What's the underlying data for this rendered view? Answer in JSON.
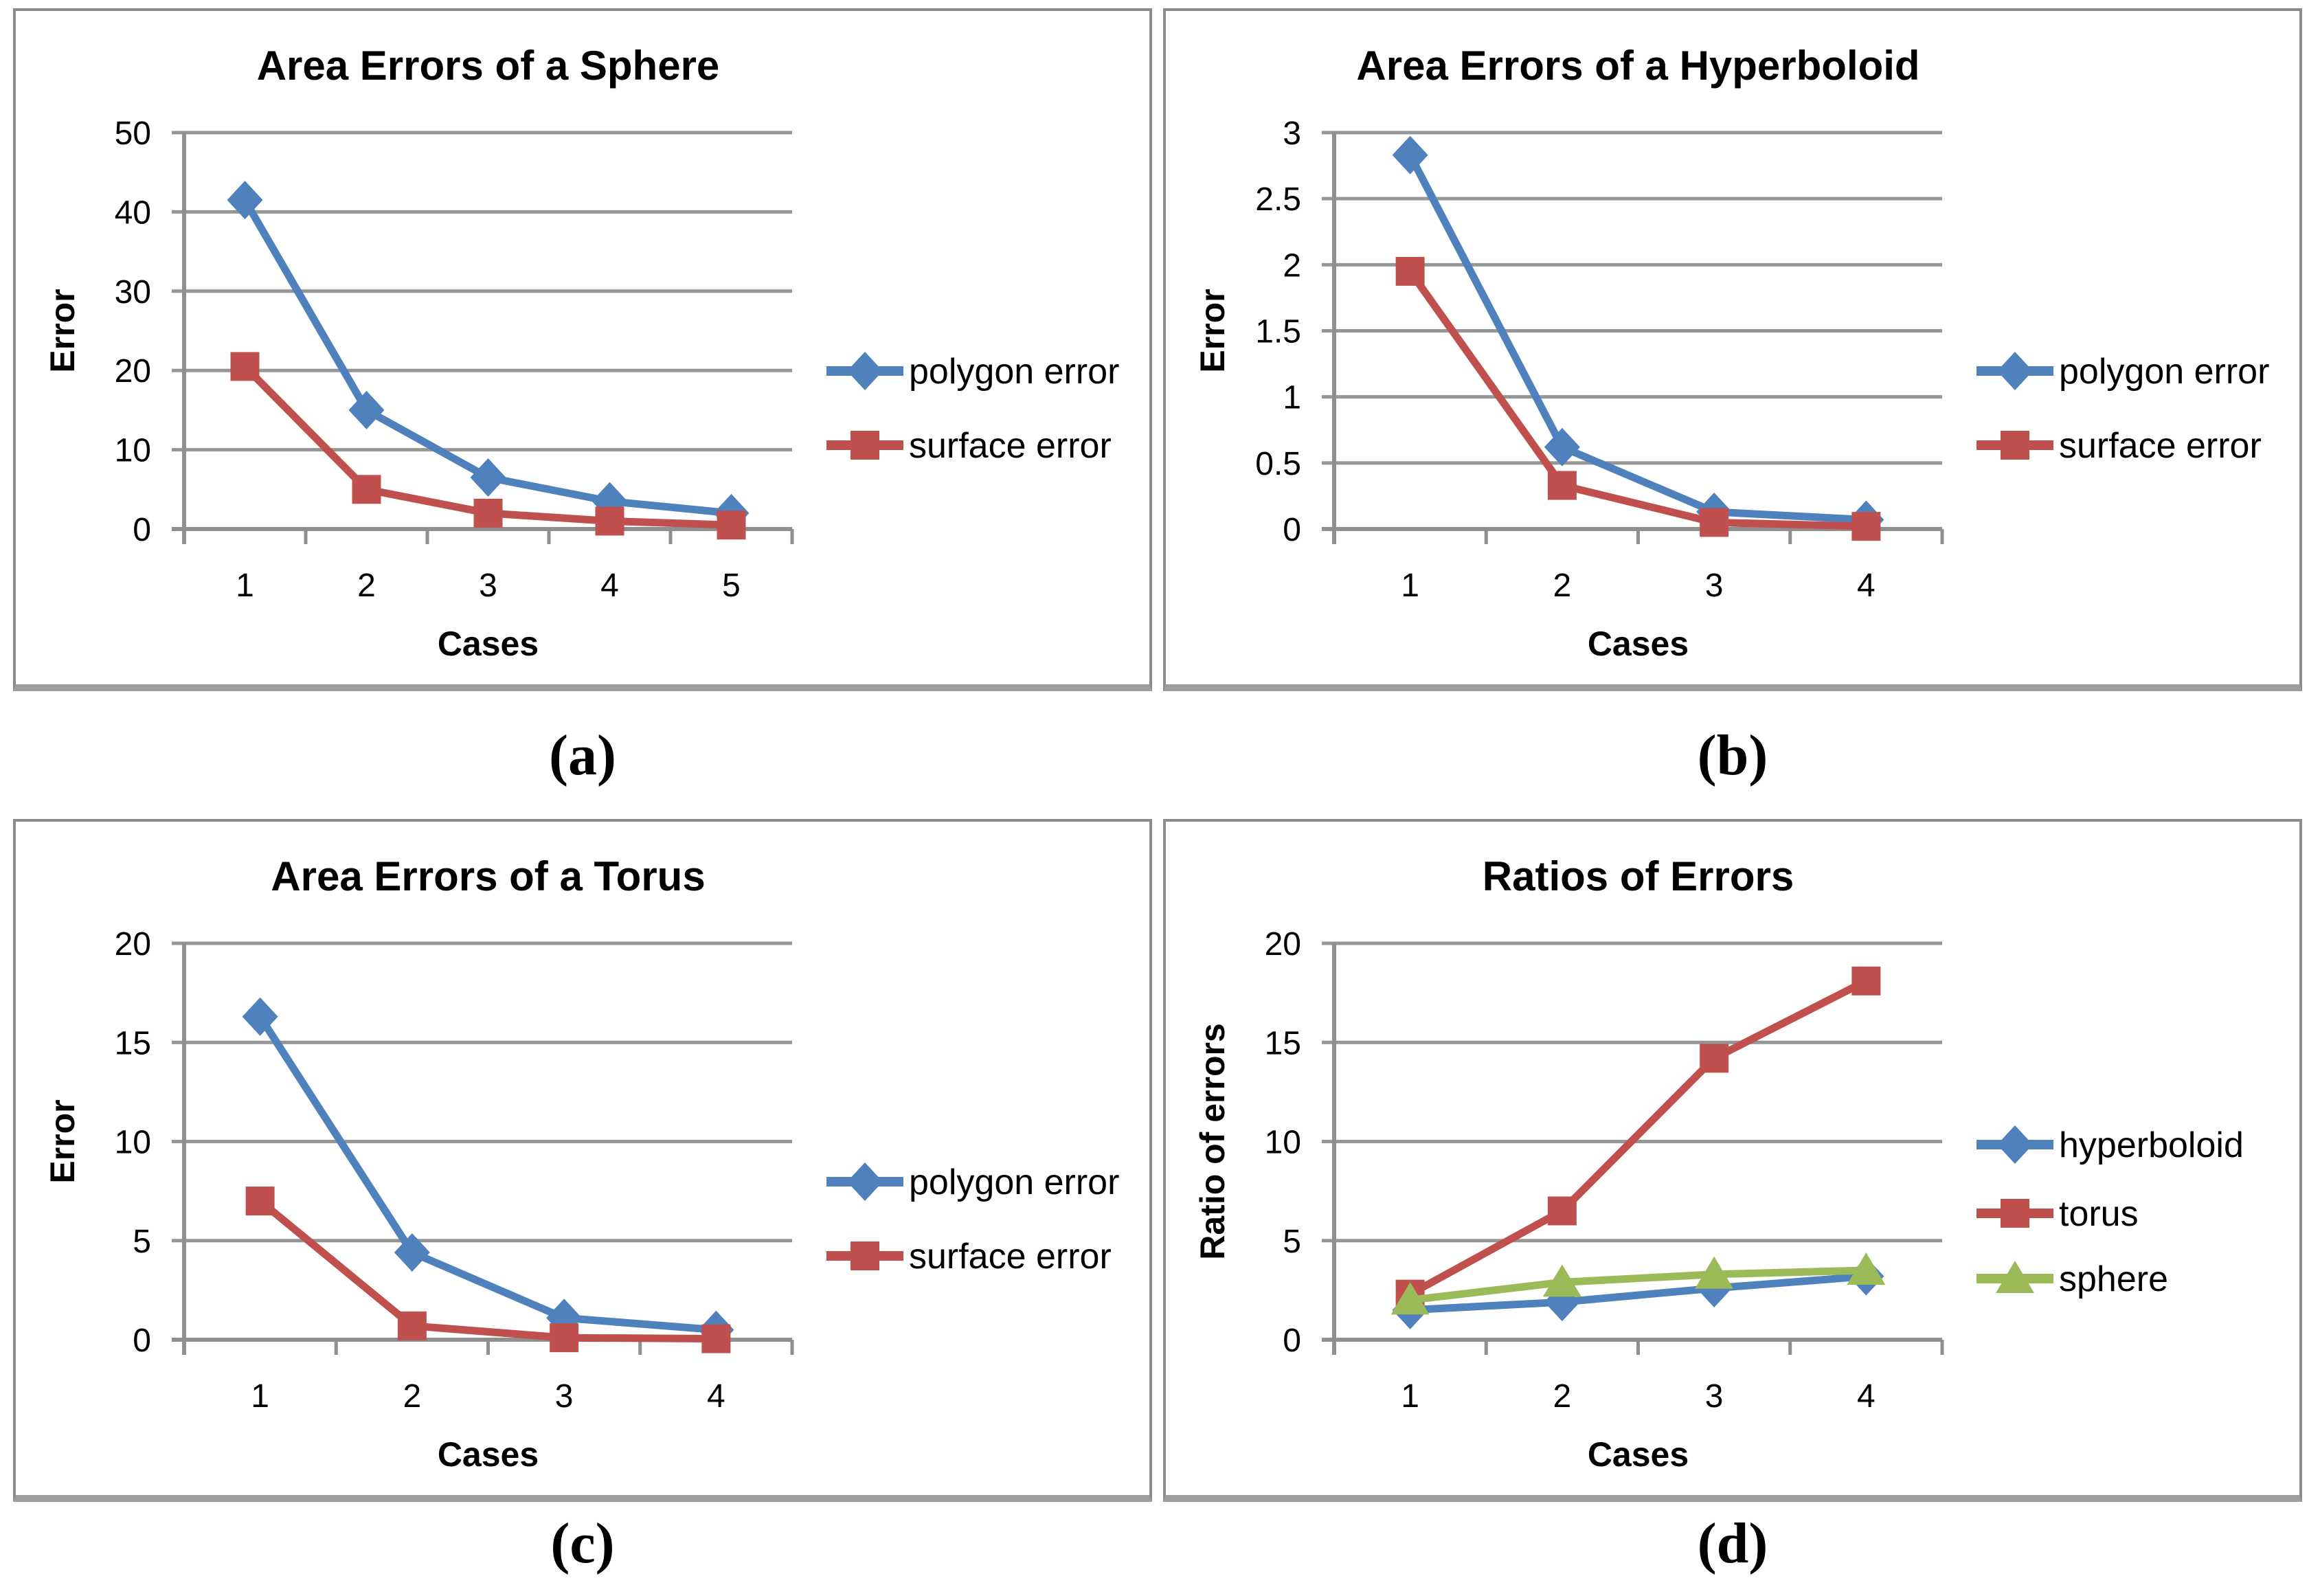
{
  "captions": [
    "(a)",
    "(b)",
    "(c)",
    "(d)"
  ],
  "style_colors": {
    "gridline": "#969696",
    "axis": "#8f8f8f",
    "panel_border": "#8b8b8b",
    "text": "#000000",
    "series_blue": "#4F81BD",
    "series_red": "#C0504D",
    "series_green": "#9BBB59"
  },
  "chart_data": [
    {
      "type": "line",
      "title": "Area Errors of a Sphere",
      "xlabel": "Cases",
      "ylabel": "Error",
      "categories": [
        "1",
        "2",
        "3",
        "4",
        "5"
      ],
      "ylim": [
        0,
        50
      ],
      "ytick_step": 10,
      "grid": true,
      "legend_position": "right",
      "series": [
        {
          "name": "polygon error",
          "color": "#4F81BD",
          "marker": "diamond",
          "values": [
            41.5,
            15,
            6.5,
            3.5,
            2
          ]
        },
        {
          "name": "surface error",
          "color": "#C0504D",
          "marker": "square",
          "values": [
            20.5,
            5,
            2,
            1,
            0.5
          ]
        }
      ]
    },
    {
      "type": "line",
      "title": "Area Errors of a Hyperboloid",
      "xlabel": "Cases",
      "ylabel": "Error",
      "categories": [
        "1",
        "2",
        "3",
        "4"
      ],
      "ylim": [
        0,
        3
      ],
      "ytick_step": 0.5,
      "grid": true,
      "legend_position": "right",
      "series": [
        {
          "name": "polygon error",
          "color": "#4F81BD",
          "marker": "diamond",
          "values": [
            2.83,
            0.62,
            0.13,
            0.07
          ]
        },
        {
          "name": "surface error",
          "color": "#C0504D",
          "marker": "square",
          "values": [
            1.95,
            0.33,
            0.05,
            0.02
          ]
        }
      ]
    },
    {
      "type": "line",
      "title": "Area Errors of a Torus",
      "xlabel": "Cases",
      "ylabel": "Error",
      "categories": [
        "1",
        "2",
        "3",
        "4"
      ],
      "ylim": [
        0,
        20
      ],
      "ytick_step": 5,
      "grid": true,
      "legend_position": "right",
      "series": [
        {
          "name": "polygon error",
          "color": "#4F81BD",
          "marker": "diamond",
          "values": [
            16.3,
            4.4,
            1.1,
            0.5
          ]
        },
        {
          "name": "surface error",
          "color": "#C0504D",
          "marker": "square",
          "values": [
            7.0,
            0.7,
            0.1,
            0.05
          ]
        }
      ]
    },
    {
      "type": "line",
      "title": "Ratios of Errors",
      "xlabel": "Cases",
      "ylabel": "Ratio of errors",
      "categories": [
        "1",
        "2",
        "3",
        "4"
      ],
      "ylim": [
        0,
        20
      ],
      "ytick_step": 5,
      "grid": true,
      "legend_position": "right",
      "series": [
        {
          "name": "hyperboloid",
          "color": "#4F81BD",
          "marker": "diamond",
          "values": [
            1.5,
            1.9,
            2.6,
            3.2
          ]
        },
        {
          "name": "torus",
          "color": "#C0504D",
          "marker": "square",
          "values": [
            2.3,
            6.5,
            14.2,
            18.1
          ]
        },
        {
          "name": "sphere",
          "color": "#9BBB59",
          "marker": "triangle",
          "values": [
            2.0,
            2.9,
            3.3,
            3.5
          ]
        }
      ]
    }
  ]
}
